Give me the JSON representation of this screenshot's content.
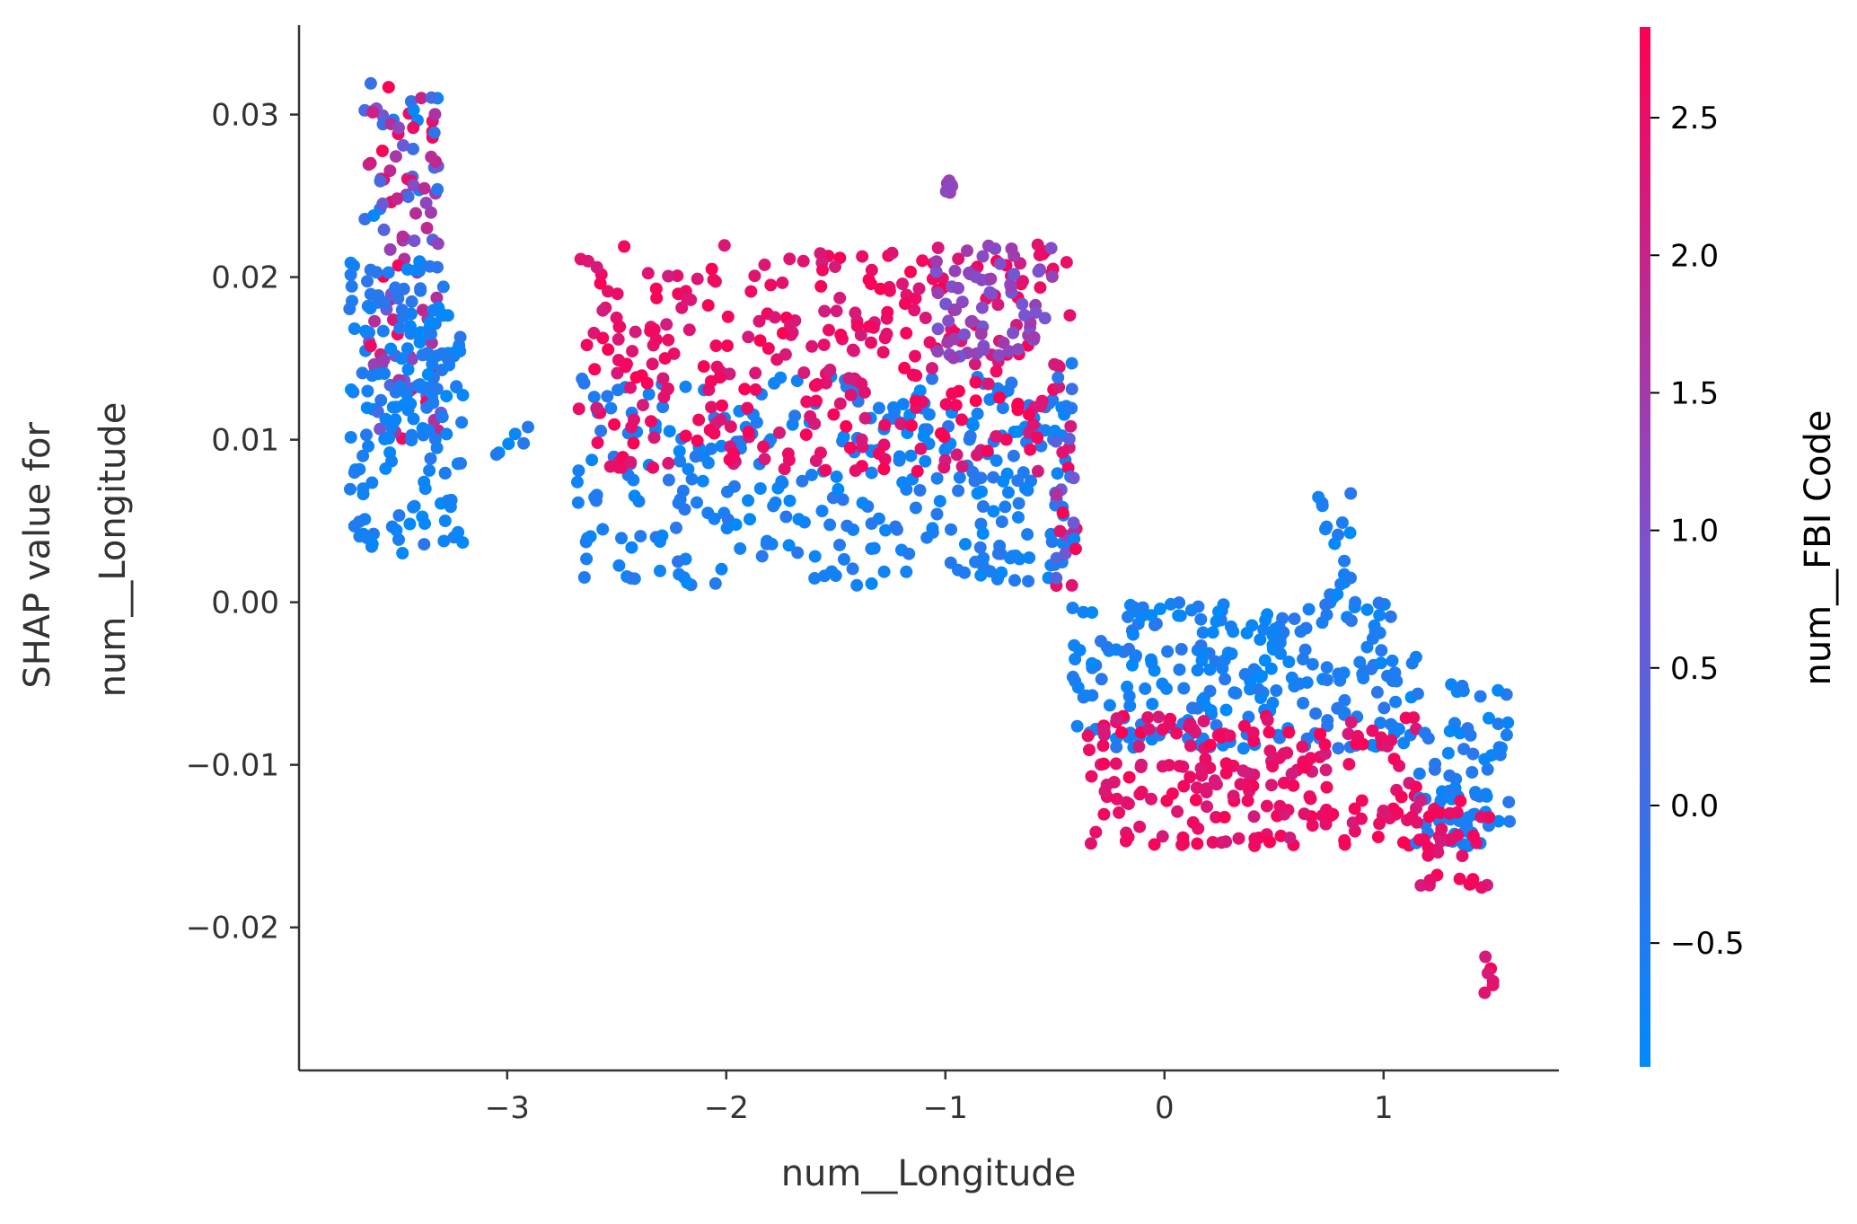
{
  "chart_data": {
    "type": "scatter",
    "xlabel": "num__Longitude",
    "ylabel_lines": [
      "SHAP value for",
      "num__Longitude"
    ],
    "xlim": [
      -3.95,
      1.8
    ],
    "ylim": [
      -0.0288,
      0.0355
    ],
    "x_ticks": [
      -3,
      -2,
      -1,
      0,
      1
    ],
    "x_tick_labels": [
      "−3",
      "−2",
      "−1",
      "0",
      "1"
    ],
    "y_ticks": [
      0.03,
      0.02,
      0.01,
      0.0,
      -0.01,
      -0.02
    ],
    "y_tick_labels": [
      "0.03",
      "0.02",
      "0.01",
      "0.00",
      "−0.01",
      "−0.02"
    ],
    "grid": false,
    "point_color_low": "#008afb",
    "point_color_mid": "#7c52cf",
    "point_color_high": "#ff0052",
    "colorbar": {
      "label": "num__FBI Code",
      "range": [
        -0.95,
        2.83
      ],
      "ticks": [
        2.5,
        2.0,
        1.5,
        1.0,
        0.5,
        0.0,
        -0.5
      ],
      "tick_labels": [
        "2.5",
        "2.0",
        "1.5",
        "1.0",
        "0.5",
        "0.0",
        "−0.5"
      ],
      "colors": [
        "#008afb",
        "#7c52cf",
        "#ff0052"
      ]
    },
    "clusters": [
      {
        "x": [
          -3.65,
          -3.3
        ],
        "y": [
          0.01,
          0.032
        ],
        "c": "mixed"
      },
      {
        "x": [
          -3.72,
          -3.2
        ],
        "y": [
          0.003,
          0.021
        ],
        "c": "low"
      },
      {
        "x": [
          -3.05,
          -2.9
        ],
        "y": [
          0.009,
          0.011
        ],
        "c": "low"
      },
      {
        "x": [
          -2.68,
          -0.42
        ],
        "y": [
          0.001,
          0.014
        ],
        "c": "low"
      },
      {
        "x": [
          -2.68,
          -0.42
        ],
        "y": [
          0.008,
          0.022
        ],
        "c": "high"
      },
      {
        "x": [
          -1.05,
          -0.5
        ],
        "y": [
          0.015,
          0.022
        ],
        "c": "mid"
      },
      {
        "x": [
          -1.02,
          -0.95
        ],
        "y": [
          0.025,
          0.026
        ],
        "c": "mid"
      },
      {
        "x": [
          -0.5,
          -0.4
        ],
        "y": [
          0.0,
          0.016
        ],
        "c": "mixed"
      },
      {
        "x": [
          -0.45,
          1.15
        ],
        "y": [
          -0.009,
          0.0
        ],
        "c": "low"
      },
      {
        "x": [
          -0.35,
          1.15
        ],
        "y": [
          -0.015,
          -0.007
        ],
        "c": "high"
      },
      {
        "x": [
          0.7,
          0.85
        ],
        "y": [
          0.0,
          0.007
        ],
        "c": "low"
      },
      {
        "x": [
          1.15,
          1.58
        ],
        "y": [
          -0.015,
          -0.005
        ],
        "c": "low"
      },
      {
        "x": [
          1.15,
          1.5
        ],
        "y": [
          -0.018,
          -0.012
        ],
        "c": "high"
      },
      {
        "x": [
          1.45,
          1.5
        ],
        "y": [
          -0.026,
          -0.021
        ],
        "c": "high"
      }
    ]
  }
}
